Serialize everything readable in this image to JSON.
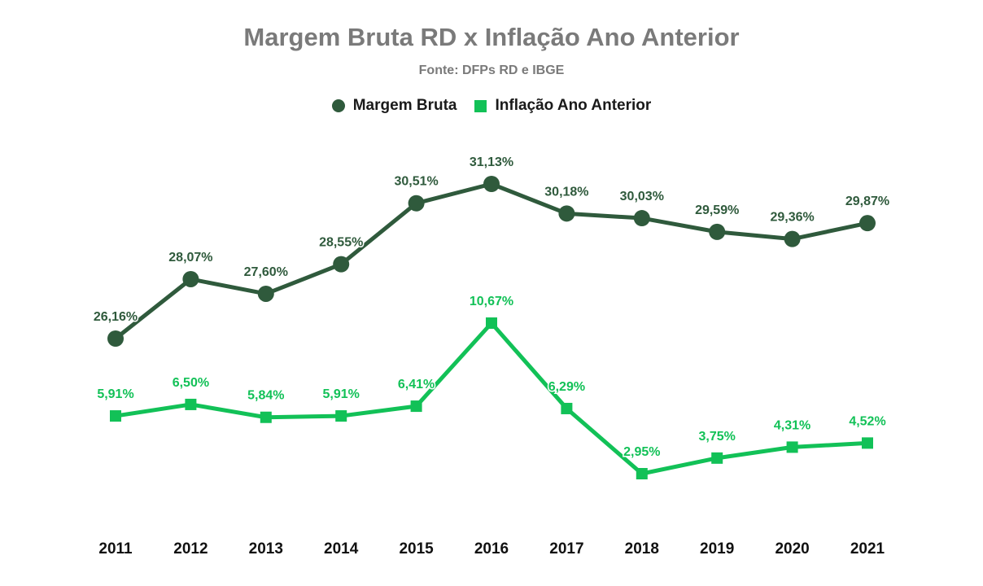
{
  "chart_data": {
    "type": "line",
    "title": "Margem Bruta RD x Inflação Ano Anterior",
    "subtitle": "Fonte: DFPs RD e IBGE",
    "legend_position": "top-center",
    "grid": false,
    "categories": [
      "2011",
      "2012",
      "2013",
      "2014",
      "2015",
      "2016",
      "2017",
      "2018",
      "2019",
      "2020",
      "2021"
    ],
    "series": [
      {
        "name": "Margem Bruta",
        "marker": "circle",
        "color": "#2f5a3c",
        "values": [
          26.16,
          28.07,
          27.6,
          28.55,
          30.51,
          31.13,
          30.18,
          30.03,
          29.59,
          29.36,
          29.87
        ],
        "labels": [
          "26,16%",
          "28,07%",
          "27,60%",
          "28,55%",
          "30,51%",
          "31,13%",
          "30,18%",
          "30,03%",
          "29,59%",
          "29,36%",
          "29,87%"
        ]
      },
      {
        "name": "Inflação Ano Anterior",
        "marker": "square",
        "color": "#12c157",
        "values": [
          5.91,
          6.5,
          5.84,
          5.91,
          6.41,
          10.67,
          6.29,
          2.95,
          3.75,
          4.31,
          4.52
        ],
        "labels": [
          "5,91%",
          "6,50%",
          "5,84%",
          "5,91%",
          "6,41%",
          "10,67%",
          "6,29%",
          "2,95%",
          "3,75%",
          "4,31%",
          "4,52%"
        ]
      }
    ]
  }
}
